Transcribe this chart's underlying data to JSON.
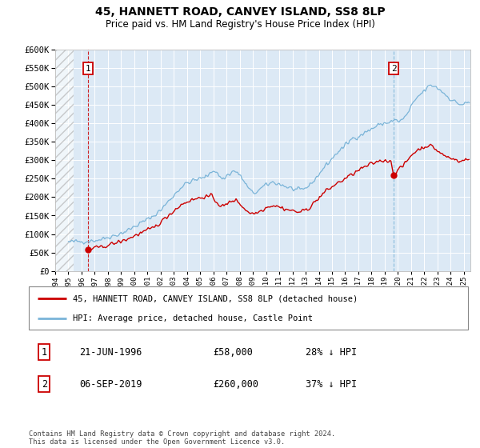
{
  "title1": "45, HANNETT ROAD, CANVEY ISLAND, SS8 8LP",
  "title2": "Price paid vs. HM Land Registry's House Price Index (HPI)",
  "legend1": "45, HANNETT ROAD, CANVEY ISLAND, SS8 8LP (detached house)",
  "legend2": "HPI: Average price, detached house, Castle Point",
  "footer": "Contains HM Land Registry data © Crown copyright and database right 2024.\nThis data is licensed under the Open Government Licence v3.0.",
  "purchase1_date": "21-JUN-1996",
  "purchase1_price": "£58,000",
  "purchase1_hpi": "28% ↓ HPI",
  "purchase1_year": 1996.47,
  "purchase1_value": 58000,
  "purchase2_date": "06-SEP-2019",
  "purchase2_price": "£260,000",
  "purchase2_hpi": "37% ↓ HPI",
  "purchase2_year": 2019.68,
  "purchase2_value": 260000,
  "hpi_color": "#7ab4d8",
  "price_color": "#cc0000",
  "vline1_color": "#cc0000",
  "vline2_color": "#7ab4d8",
  "background_color": "#dce9f5",
  "ymin": 0,
  "ymax": 600000,
  "xmin": 1994.0,
  "xmax": 2025.5
}
